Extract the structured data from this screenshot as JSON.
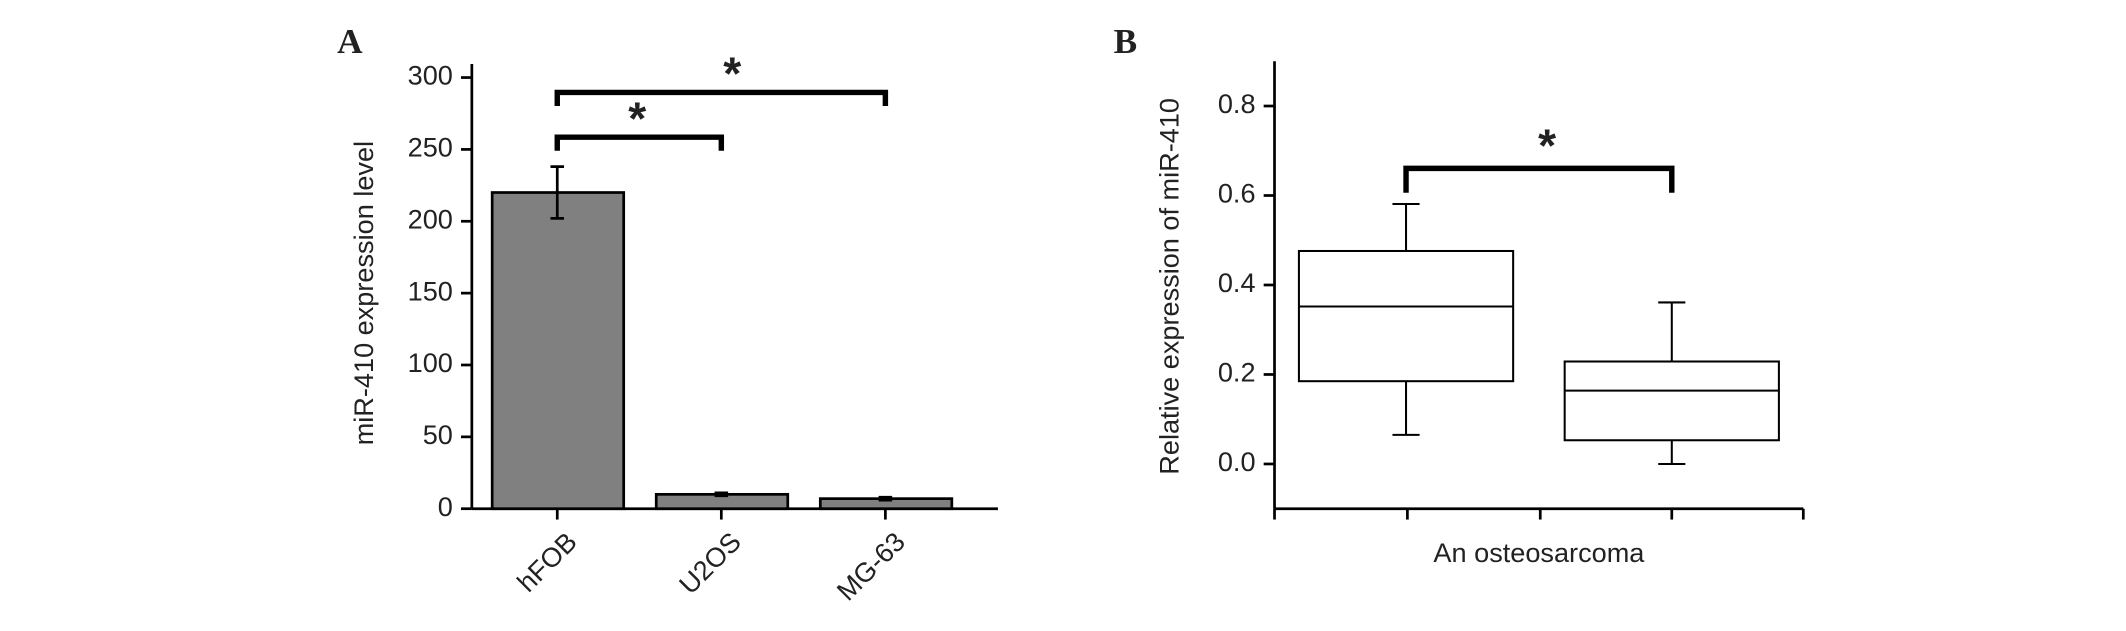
{
  "chart_data": [
    {
      "type": "bar",
      "panel_label": "A",
      "ylabel": "miR-410 expression level",
      "categories": [
        "hFOB",
        "U2OS",
        "MG-63"
      ],
      "values": [
        220,
        10,
        7
      ],
      "errors": [
        18,
        1,
        1
      ],
      "color": "#808080",
      "ylim": [
        0,
        300
      ],
      "yticks": [
        0,
        50,
        100,
        150,
        200,
        250,
        300
      ],
      "annotations": [
        {
          "text": "*"
        },
        {
          "text": "*"
        }
      ]
    },
    {
      "type": "box",
      "panel_label": "B",
      "ylabel": "Relative expression of miR-410",
      "xlabel": "An osteosarcoma",
      "categories": [
        null,
        null
      ],
      "boxes": [
        {
          "min": 0.065,
          "q1": 0.185,
          "median": 0.352,
          "q3": 0.476,
          "max": 0.581
        },
        {
          "min": 0.0,
          "q1": 0.053,
          "median": 0.164,
          "q3": 0.229,
          "max": 0.361
        }
      ],
      "ylim": [
        -0.1,
        0.9
      ],
      "yticks": [
        {
          "value": 0,
          "label": "0.0"
        },
        0.2,
        0.4,
        0.6,
        0.8
      ],
      "annotations": [
        {
          "text": "*"
        }
      ]
    }
  ]
}
